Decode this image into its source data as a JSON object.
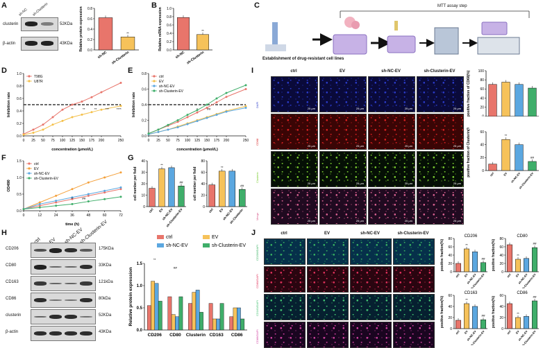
{
  "panel_labels": [
    "A",
    "B",
    "C",
    "D",
    "E",
    "F",
    "G",
    "H",
    "I",
    "J"
  ],
  "A": {
    "lanes": [
      "sh-NC",
      "sh-Clusterin"
    ],
    "bands": [
      "clusterin",
      "β-actin"
    ],
    "kda": [
      "52KDa",
      "43KDa"
    ],
    "chart_data": {
      "type": "bar",
      "categories": [
        "sh-NC",
        "sh-Clusterin"
      ],
      "values": [
        0.62,
        0.25
      ],
      "ylabel": "Relative protein expression",
      "ylim": [
        0,
        0.8
      ],
      "yticks": [
        "0.0",
        "0.2",
        "0.4",
        "0.6",
        "0.8"
      ],
      "sig": [
        "",
        "**"
      ]
    }
  },
  "B": {
    "chart_data": {
      "type": "bar",
      "categories": [
        "sh-NC",
        "sh-Clusterin"
      ],
      "values": [
        0.78,
        0.37
      ],
      "ylabel": "Relative mRNA expression",
      "ylim": [
        0,
        1.0
      ],
      "yticks": [
        "0.0",
        "0.2",
        "0.4",
        "0.6",
        "0.8",
        "1.0"
      ],
      "sig": [
        "",
        "**"
      ]
    }
  },
  "C": {
    "title": "MTT assay step",
    "caption": "Establishment of drug-resistant cell lines"
  },
  "D": {
    "chart_data": {
      "type": "line",
      "x": [
        0,
        25,
        50,
        75,
        100,
        125,
        150,
        175,
        200,
        250
      ],
      "xticks": [
        "0",
        "25",
        "50",
        "75",
        "100",
        "125",
        "150",
        "175",
        "200",
        "250"
      ],
      "xlabel": "concentration (μmol/L)",
      "ylabel": "Inhibition rate",
      "ylim": [
        0,
        1.0
      ],
      "yticks": [
        "0.0",
        "0.2",
        "0.4",
        "0.6",
        "0.8",
        "1.0"
      ],
      "series": [
        {
          "name": "T98G",
          "color": "#e8756b",
          "values": [
            0.03,
            0.1,
            0.18,
            0.3,
            0.42,
            0.5,
            0.55,
            0.62,
            0.7,
            0.85
          ]
        },
        {
          "name": "U87R",
          "color": "#f4c04a",
          "values": [
            0.02,
            0.05,
            0.1,
            0.18,
            0.24,
            0.3,
            0.34,
            0.38,
            0.42,
            0.48
          ]
        }
      ],
      "threshold": 0.5,
      "sig": [
        "**",
        "**",
        "**",
        "***",
        "****"
      ]
    }
  },
  "E": {
    "chart_data": {
      "type": "line",
      "x": [
        0,
        25,
        50,
        75,
        100,
        125,
        150,
        175,
        200,
        250
      ],
      "xticks": [
        "0",
        "25",
        "50",
        "75",
        "100",
        "125",
        "150",
        "175",
        "200",
        "250"
      ],
      "xlabel": "concentration (μmol/L)",
      "ylabel": "Inhibition rate",
      "ylim": [
        0,
        0.8
      ],
      "yticks": [
        "0.0",
        "0.2",
        "0.4",
        "0.6",
        "0.8"
      ],
      "series": [
        {
          "name": "ctrl",
          "color": "#e8756b",
          "values": [
            0.03,
            0.08,
            0.13,
            0.18,
            0.24,
            0.3,
            0.36,
            0.43,
            0.5,
            0.6
          ]
        },
        {
          "name": "EV",
          "color": "#f4c04a",
          "values": [
            0.02,
            0.05,
            0.08,
            0.12,
            0.16,
            0.2,
            0.24,
            0.28,
            0.32,
            0.38
          ]
        },
        {
          "name": "sh-NC-EV",
          "color": "#5ba7e0",
          "values": [
            0.02,
            0.05,
            0.08,
            0.11,
            0.15,
            0.19,
            0.23,
            0.27,
            0.31,
            0.36
          ]
        },
        {
          "name": "sh-Clusterin-EV",
          "color": "#3fae6a",
          "values": [
            0.03,
            0.08,
            0.14,
            0.2,
            0.27,
            0.33,
            0.4,
            0.48,
            0.55,
            0.65
          ]
        }
      ],
      "threshold": 0.4,
      "sig": [
        "*",
        "##"
      ]
    }
  },
  "F": {
    "chart_data": {
      "type": "line",
      "x": [
        0,
        12,
        24,
        36,
        48,
        60,
        72
      ],
      "xticks": [
        "0",
        "12",
        "24",
        "36",
        "48",
        "60",
        "72"
      ],
      "xlabel": "time (h)",
      "ylabel": "OD490",
      "ylim": [
        0,
        1.5
      ],
      "yticks": [
        "0.0",
        "0.5",
        "1.0",
        "1.5"
      ],
      "series": [
        {
          "name": "ctrl",
          "color": "#e8756b",
          "values": [
            0.05,
            0.15,
            0.25,
            0.35,
            0.45,
            0.55,
            0.65
          ]
        },
        {
          "name": "EV",
          "color": "#f4a03a",
          "values": [
            0.05,
            0.25,
            0.45,
            0.65,
            0.85,
            1.0,
            1.15
          ]
        },
        {
          "name": "sh-NC-EV",
          "color": "#5ba7e0",
          "values": [
            0.05,
            0.2,
            0.3,
            0.4,
            0.5,
            0.6,
            0.7
          ]
        },
        {
          "name": "sh-Clusterin-EV",
          "color": "#3fae6a",
          "values": [
            0.05,
            0.1,
            0.15,
            0.2,
            0.28,
            0.35,
            0.42
          ]
        }
      ],
      "sig": [
        "**",
        "##"
      ]
    }
  },
  "G": {
    "chart_data": [
      {
        "type": "bar",
        "categories": [
          "ctrl",
          "EV",
          "sh-NC-EV",
          "sh-Clusterin-EV"
        ],
        "values": [
          16,
          33,
          34,
          18
        ],
        "ylabel": "cell number per field",
        "ylim": [
          0,
          40
        ],
        "yticks": [
          "0",
          "10",
          "20",
          "30",
          "40"
        ],
        "sig": [
          "",
          "**",
          "",
          "##"
        ]
      },
      {
        "type": "bar",
        "categories": [
          "ctrl",
          "EV",
          "sh-NC-EV",
          "sh-Clusterin-"
        ],
        "values": [
          38,
          62,
          62,
          30
        ],
        "ylabel": "cell number per field",
        "ylim": [
          0,
          80
        ],
        "yticks": [
          "0",
          "20",
          "40",
          "60",
          "80"
        ],
        "sig": [
          "",
          "**",
          "",
          "##"
        ]
      }
    ]
  },
  "H": {
    "lanes": [
      "ctrl",
      "EV",
      "sh-NC-EV",
      "sh-Clusterin-EV"
    ],
    "bands": [
      "CD206",
      "CD80",
      "CD163",
      "CD86",
      "clusterin",
      "β-actin"
    ],
    "kda": [
      "175KDa",
      "33KDa",
      "121kDa",
      "80kDa",
      "52KDa",
      "43KDa"
    ],
    "chart_data": {
      "type": "bar",
      "categories": [
        "CD206",
        "CD80",
        "Clusterin",
        "CD163",
        "CD86"
      ],
      "ylabel": "Relative protein expression",
      "ylim": [
        0,
        1.5
      ],
      "yticks": [
        "0.0",
        "0.5",
        "1.0",
        "1.5"
      ],
      "series": [
        {
          "name": "ctrl",
          "color": "#e8756b",
          "values": [
            0.55,
            0.75,
            0.6,
            0.6,
            0.3
          ]
        },
        {
          "name": "EV",
          "color": "#f6c25a",
          "values": [
            1.1,
            0.35,
            0.85,
            0.25,
            0.5
          ]
        },
        {
          "name": "sh-NC-EV",
          "color": "#5ba7e0",
          "values": [
            1.05,
            0.3,
            0.9,
            0.25,
            0.5
          ]
        },
        {
          "name": "sh-Clusterin-EV",
          "color": "#3fae6a",
          "values": [
            0.65,
            0.75,
            0.4,
            0.6,
            0.25
          ]
        }
      ],
      "sig": [
        "**",
        "##"
      ]
    }
  },
  "I": {
    "columns": [
      "ctrl",
      "EV",
      "sh-NC-EV",
      "sh-Clusterin-EV"
    ],
    "rows": [
      "DAPI",
      "CD68",
      "Clusterin",
      "Merge"
    ],
    "scale": "25 μm",
    "chart_data": [
      {
        "type": "bar",
        "categories": [
          "ctrl",
          "EV",
          "sh-NC-EV",
          "sh-Clusterin-EV"
        ],
        "values": [
          70,
          75,
          70,
          62
        ],
        "ylabel": "positive fraction of CD68(%)",
        "ylim": [
          0,
          100
        ],
        "yticks": [
          "0",
          "20",
          "40",
          "60",
          "80",
          "100"
        ]
      },
      {
        "type": "bar",
        "categories": [
          "ctrl",
          "EV",
          "sh-NC-EV",
          "sh-Clusterin-EV"
        ],
        "values": [
          10,
          48,
          40,
          14
        ],
        "ylabel": "positive fraction of Clusterin(%)",
        "ylim": [
          0,
          60
        ],
        "yticks": [
          "0",
          "20",
          "40",
          "60"
        ],
        "sig": [
          "",
          "**",
          "",
          "##"
        ]
      }
    ]
  },
  "J": {
    "columns": [
      "ctrl",
      "EV",
      "sh-NC-EV",
      "sh-Clusterin-EV"
    ],
    "rows": [
      "CD206/DAPI",
      "CD80/DAPI",
      "CD163/DAPI",
      "CD86/DAPI"
    ],
    "chart_data": [
      {
        "type": "bar",
        "title": "CD206",
        "categories": [
          "ctrl",
          "EV",
          "sh-NC-EV",
          "sh-Clusterin-EV"
        ],
        "values": [
          20,
          55,
          48,
          22
        ],
        "ylabel": "positive fraction(%)",
        "ylim": [
          0,
          80
        ],
        "yticks": [
          "0",
          "20",
          "40",
          "60",
          "80"
        ],
        "sig": [
          "",
          "**",
          "",
          "##"
        ]
      },
      {
        "type": "bar",
        "title": "CD80",
        "categories": [
          "ctrl",
          "EV",
          "sh-NC-EV",
          "sh-Clusterin-EV"
        ],
        "values": [
          65,
          30,
          32,
          58
        ],
        "ylabel": "positive fraction(%)",
        "ylim": [
          0,
          80
        ],
        "yticks": [
          "0",
          "20",
          "40",
          "60",
          "80"
        ],
        "sig": [
          "",
          "**",
          "",
          "##"
        ]
      },
      {
        "type": "bar",
        "title": "CD163",
        "categories": [
          "ctrl",
          "EV",
          "sh-NC-EV",
          "sh-Clusterin-EV"
        ],
        "values": [
          15,
          45,
          40,
          16
        ],
        "ylabel": "positive fraction(%)",
        "ylim": [
          0,
          60
        ],
        "yticks": [
          "0",
          "20",
          "40",
          "60"
        ],
        "sig": [
          "",
          "**",
          "",
          "##"
        ]
      },
      {
        "type": "bar",
        "title": "CD86",
        "categories": [
          "ctrl",
          "EV",
          "sh-NC-EV",
          "sh-Clusterin-EV"
        ],
        "values": [
          45,
          20,
          22,
          50
        ],
        "ylabel": "positive fraction(%)",
        "ylim": [
          0,
          60
        ],
        "yticks": [
          "0",
          "20",
          "40",
          "60"
        ],
        "sig": [
          "",
          "**",
          "",
          "##"
        ]
      }
    ]
  }
}
